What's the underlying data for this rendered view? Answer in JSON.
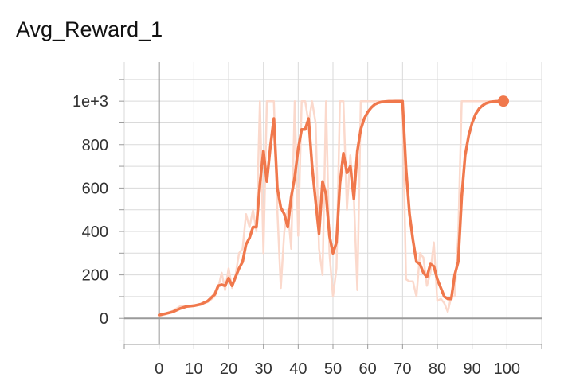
{
  "chart_data": {
    "type": "line",
    "title": "Avg_Reward_1",
    "xlabel": "",
    "ylabel": "",
    "xlim": [
      -10,
      110
    ],
    "ylim": [
      -120,
      1180
    ],
    "x_ticks": [
      0,
      10,
      20,
      30,
      40,
      50,
      60,
      70,
      80,
      90,
      100
    ],
    "y_ticks": [
      0,
      200,
      400,
      600,
      800,
      1000
    ],
    "y_tick_labels": [
      "0",
      "200",
      "400",
      "600",
      "800",
      "1e+3"
    ],
    "grid": true,
    "colors": {
      "smoothed": "#f0784c",
      "raw": "#fbd9cc"
    },
    "series": [
      {
        "role": "raw",
        "x": [
          0,
          2,
          4,
          6,
          8,
          10,
          12,
          14,
          16,
          17,
          18,
          19,
          20,
          21,
          22,
          23,
          24,
          25,
          26,
          27,
          28,
          29,
          30,
          31,
          32,
          33,
          34,
          35,
          36,
          37,
          38,
          39,
          40,
          41,
          42,
          43,
          44,
          45,
          46,
          47,
          48,
          49,
          50,
          51,
          52,
          53,
          54,
          55,
          56,
          57,
          58,
          59,
          60,
          61,
          62,
          63,
          64,
          65,
          66,
          67,
          68,
          69,
          70,
          71,
          72,
          73,
          74,
          75,
          76,
          77,
          78,
          79,
          80,
          81,
          82,
          83,
          84,
          85,
          86,
          87,
          88,
          89,
          90,
          91,
          92,
          93,
          94,
          95,
          96,
          97,
          98,
          99
        ],
        "y": [
          10,
          20,
          35,
          55,
          55,
          60,
          65,
          75,
          100,
          140,
          210,
          130,
          230,
          140,
          200,
          300,
          320,
          480,
          420,
          500,
          400,
          1000,
          300,
          1000,
          1000,
          1000,
          500,
          140,
          400,
          500,
          320,
          1000,
          380,
          1000,
          1000,
          900,
          1000,
          900,
          320,
          200,
          1000,
          300,
          100,
          230,
          1000,
          1000,
          500,
          750,
          560,
          130,
          1000,
          1000,
          1000,
          1000,
          1000,
          1000,
          1000,
          1000,
          1000,
          1000,
          1000,
          1000,
          1000,
          180,
          170,
          170,
          100,
          300,
          280,
          150,
          210,
          350,
          80,
          90,
          70,
          30,
          100,
          100,
          380,
          1000,
          1000,
          1000,
          1000,
          1000,
          1000,
          1000,
          1000,
          1000,
          1000,
          1000,
          1000,
          1000
        ]
      },
      {
        "role": "smoothed",
        "x": [
          0,
          2,
          4,
          6,
          8,
          10,
          12,
          14,
          16,
          17,
          18,
          19,
          20,
          21,
          22,
          23,
          24,
          25,
          26,
          27,
          28,
          29,
          30,
          31,
          32,
          33,
          34,
          35,
          36,
          37,
          38,
          39,
          40,
          41,
          42,
          43,
          44,
          45,
          46,
          47,
          48,
          49,
          50,
          51,
          52,
          53,
          54,
          55,
          56,
          57,
          58,
          59,
          60,
          61,
          62,
          63,
          64,
          65,
          66,
          67,
          68,
          69,
          70,
          71,
          72,
          73,
          74,
          75,
          76,
          77,
          78,
          79,
          80,
          81,
          82,
          83,
          84,
          85,
          86,
          87,
          88,
          89,
          90,
          91,
          92,
          93,
          94,
          95,
          96,
          97,
          98,
          99
        ],
        "y": [
          15,
          22,
          30,
          45,
          55,
          58,
          65,
          80,
          110,
          150,
          155,
          150,
          185,
          150,
          190,
          230,
          260,
          340,
          370,
          420,
          420,
          620,
          770,
          630,
          790,
          920,
          600,
          510,
          480,
          420,
          560,
          650,
          780,
          870,
          870,
          920,
          700,
          540,
          390,
          630,
          570,
          380,
          300,
          350,
          620,
          760,
          670,
          700,
          550,
          770,
          870,
          920,
          950,
          970,
          985,
          992,
          996,
          998,
          999,
          999,
          1000,
          1000,
          1000,
          690,
          480,
          360,
          260,
          250,
          210,
          190,
          250,
          240,
          180,
          140,
          100,
          90,
          90,
          200,
          260,
          560,
          750,
          840,
          900,
          940,
          965,
          980,
          990,
          995,
          998,
          999,
          1000,
          1000
        ]
      }
    ],
    "last_point": {
      "x": 99,
      "y": 1000
    }
  }
}
